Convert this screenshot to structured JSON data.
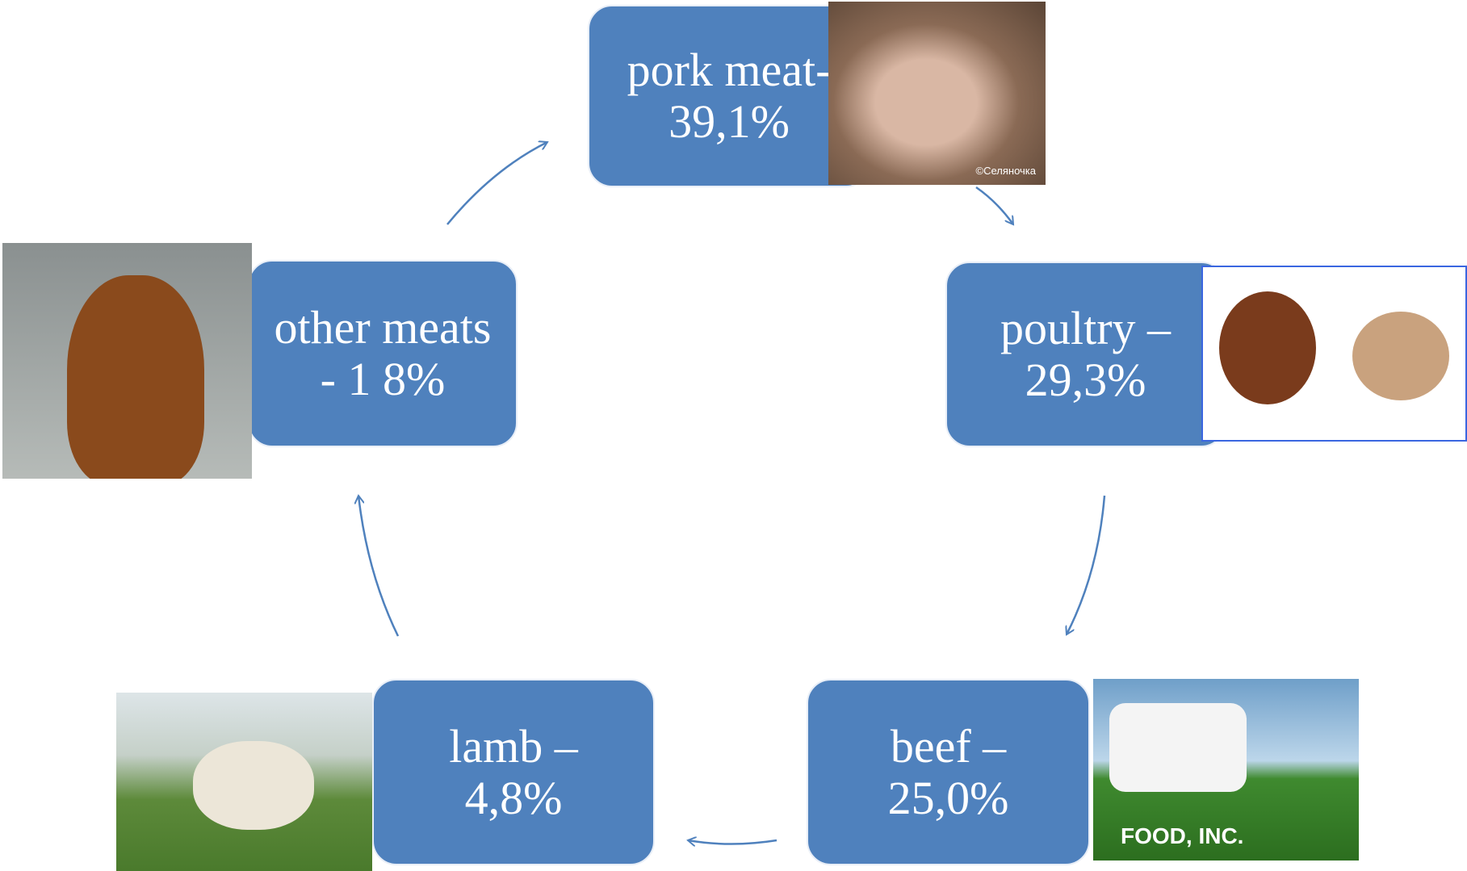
{
  "title": null,
  "nodes": [
    {
      "lines": [
        "pork meat-",
        "39,1%"
      ],
      "image_text": "©Селяночка"
    },
    {
      "lines": [
        "poultry –",
        "29,3%"
      ]
    },
    {
      "lines": [
        "beef –",
        "25,0%"
      ],
      "image_text": "FOOD, INC."
    },
    {
      "lines": [
        "lamb –",
        "4,8%"
      ]
    },
    {
      "lines": [
        "other meats",
        "- 1 8%"
      ]
    }
  ]
}
